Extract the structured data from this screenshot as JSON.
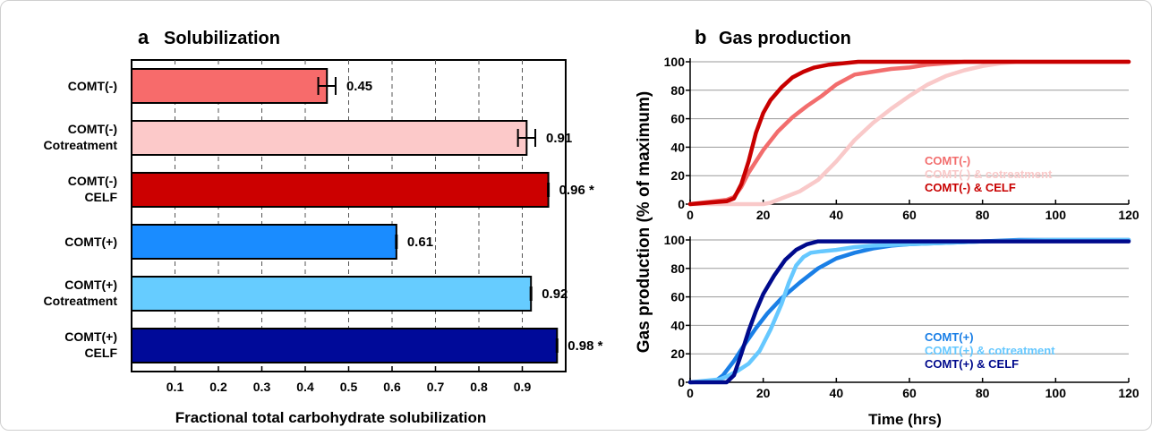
{
  "chart_data": [
    {
      "type": "bar",
      "orientation": "horizontal",
      "panel_letter": "a",
      "title": "Solubilization",
      "xlabel": "Fractional total carbohydrate solubilization",
      "ylabel": "",
      "xlim": [
        0,
        1.0
      ],
      "xticks": [
        "0.1",
        "0.2",
        "0.3",
        "0.4",
        "0.5",
        "0.6",
        "0.7",
        "0.8",
        "0.9"
      ],
      "grid": "vertical dashed",
      "categories": [
        [
          "COMT(-)"
        ],
        [
          "COMT(-)",
          "Cotreatment"
        ],
        [
          "COMT(-)",
          "CELF"
        ],
        [
          "COMT(+)"
        ],
        [
          "COMT(+)",
          "Cotreatment"
        ],
        [
          "COMT(+)",
          "CELF"
        ]
      ],
      "values": [
        0.45,
        0.91,
        0.96,
        0.61,
        0.92,
        0.98
      ],
      "errors": [
        0.02,
        0.02,
        0.0,
        0.0,
        0.0,
        0.0
      ],
      "value_labels": [
        "0.45",
        "0.91",
        "0.96 *",
        "0.61",
        "0.92",
        "0.98 *"
      ],
      "colors": [
        "#f76b6b",
        "#fcc9c9",
        "#cc0000",
        "#1a8cff",
        "#66ccff",
        "#000a99"
      ]
    },
    {
      "type": "line",
      "panel_letter": "b",
      "title": "Gas production",
      "xlabel": "Time (hrs)",
      "ylabel": "Gas production (% of maximum)",
      "subplots": [
        {
          "xlim": [
            0,
            120
          ],
          "ylim": [
            0,
            100
          ],
          "xticks": [
            "0",
            "20",
            "40",
            "60",
            "80",
            "100",
            "120"
          ],
          "yticks": [
            "0",
            "20",
            "40",
            "60",
            "80",
            "100"
          ],
          "legend_position": "bottom-right",
          "series": [
            {
              "name": "COMT(-)",
              "color": "#f26d6d",
              "x": [
                0,
                10,
                12,
                14,
                16,
                20,
                24,
                28,
                32,
                36,
                40,
                45,
                50,
                55,
                60,
                65,
                70,
                75,
                80,
                90,
                100,
                110,
                120
              ],
              "y": [
                0,
                3,
                5,
                12,
                22,
                38,
                51,
                61,
                69,
                76,
                84,
                91,
                93,
                95,
                96,
                98,
                99,
                100,
                100,
                100,
                100,
                100,
                100
              ]
            },
            {
              "name": "COMT(-) & cotreatment",
              "color": "#f9c9c9",
              "x": [
                0,
                20,
                22,
                25,
                30,
                35,
                40,
                45,
                50,
                55,
                60,
                65,
                70,
                75,
                80,
                85,
                90,
                100,
                110,
                120
              ],
              "y": [
                0,
                0,
                1,
                4,
                9,
                17,
                30,
                45,
                57,
                67,
                76,
                84,
                90,
                94,
                97,
                99,
                100,
                100,
                100,
                100
              ]
            },
            {
              "name": "COMT(-) & CELF",
              "color": "#c80000",
              "x": [
                0,
                10,
                12,
                14,
                16,
                18,
                20,
                22,
                25,
                28,
                31,
                34,
                38,
                42,
                46,
                50,
                60,
                70,
                80,
                100,
                120
              ],
              "y": [
                0,
                2,
                4,
                14,
                30,
                50,
                64,
                73,
                82,
                89,
                93,
                96,
                98,
                99,
                100,
                100,
                100,
                100,
                100,
                100,
                100
              ]
            }
          ]
        },
        {
          "xlim": [
            0,
            120
          ],
          "ylim": [
            0,
            100
          ],
          "xticks": [
            "0",
            "20",
            "40",
            "60",
            "80",
            "100",
            "120"
          ],
          "yticks": [
            "0",
            "20",
            "40",
            "60",
            "80",
            "100"
          ],
          "legend_position": "bottom-right",
          "series": [
            {
              "name": "COMT(+)",
              "color": "#1a7fe6",
              "x": [
                0,
                7,
                9,
                12,
                15,
                18,
                21,
                25,
                30,
                35,
                40,
                45,
                50,
                55,
                60,
                70,
                80,
                90,
                100,
                110,
                120
              ],
              "y": [
                0,
                1,
                5,
                15,
                27,
                38,
                48,
                59,
                70,
                80,
                87,
                91,
                94,
                96,
                97,
                98,
                99,
                100,
                100,
                100,
                100
              ]
            },
            {
              "name": "COMT(+) & cotreatment",
              "color": "#66c8ff",
              "x": [
                0,
                8,
                10,
                13,
                16,
                19,
                22,
                25,
                27,
                29,
                31,
                33,
                36,
                40,
                45,
                50,
                60,
                70,
                80,
                100,
                120
              ],
              "y": [
                0,
                2,
                4,
                8,
                13,
                22,
                37,
                55,
                70,
                82,
                88,
                91,
                92,
                93,
                95,
                96,
                97,
                98,
                99,
                100,
                100
              ]
            },
            {
              "name": "COMT(+) & CELF",
              "color": "#000a8c",
              "x": [
                0,
                10,
                12,
                14,
                16,
                18,
                20,
                23,
                26,
                29,
                32,
                35,
                40,
                50,
                60,
                80,
                100,
                120
              ],
              "y": [
                0,
                0,
                5,
                20,
                36,
                50,
                62,
                75,
                86,
                93,
                97,
                99,
                99,
                99,
                99,
                99,
                99,
                99
              ]
            }
          ]
        }
      ]
    }
  ]
}
